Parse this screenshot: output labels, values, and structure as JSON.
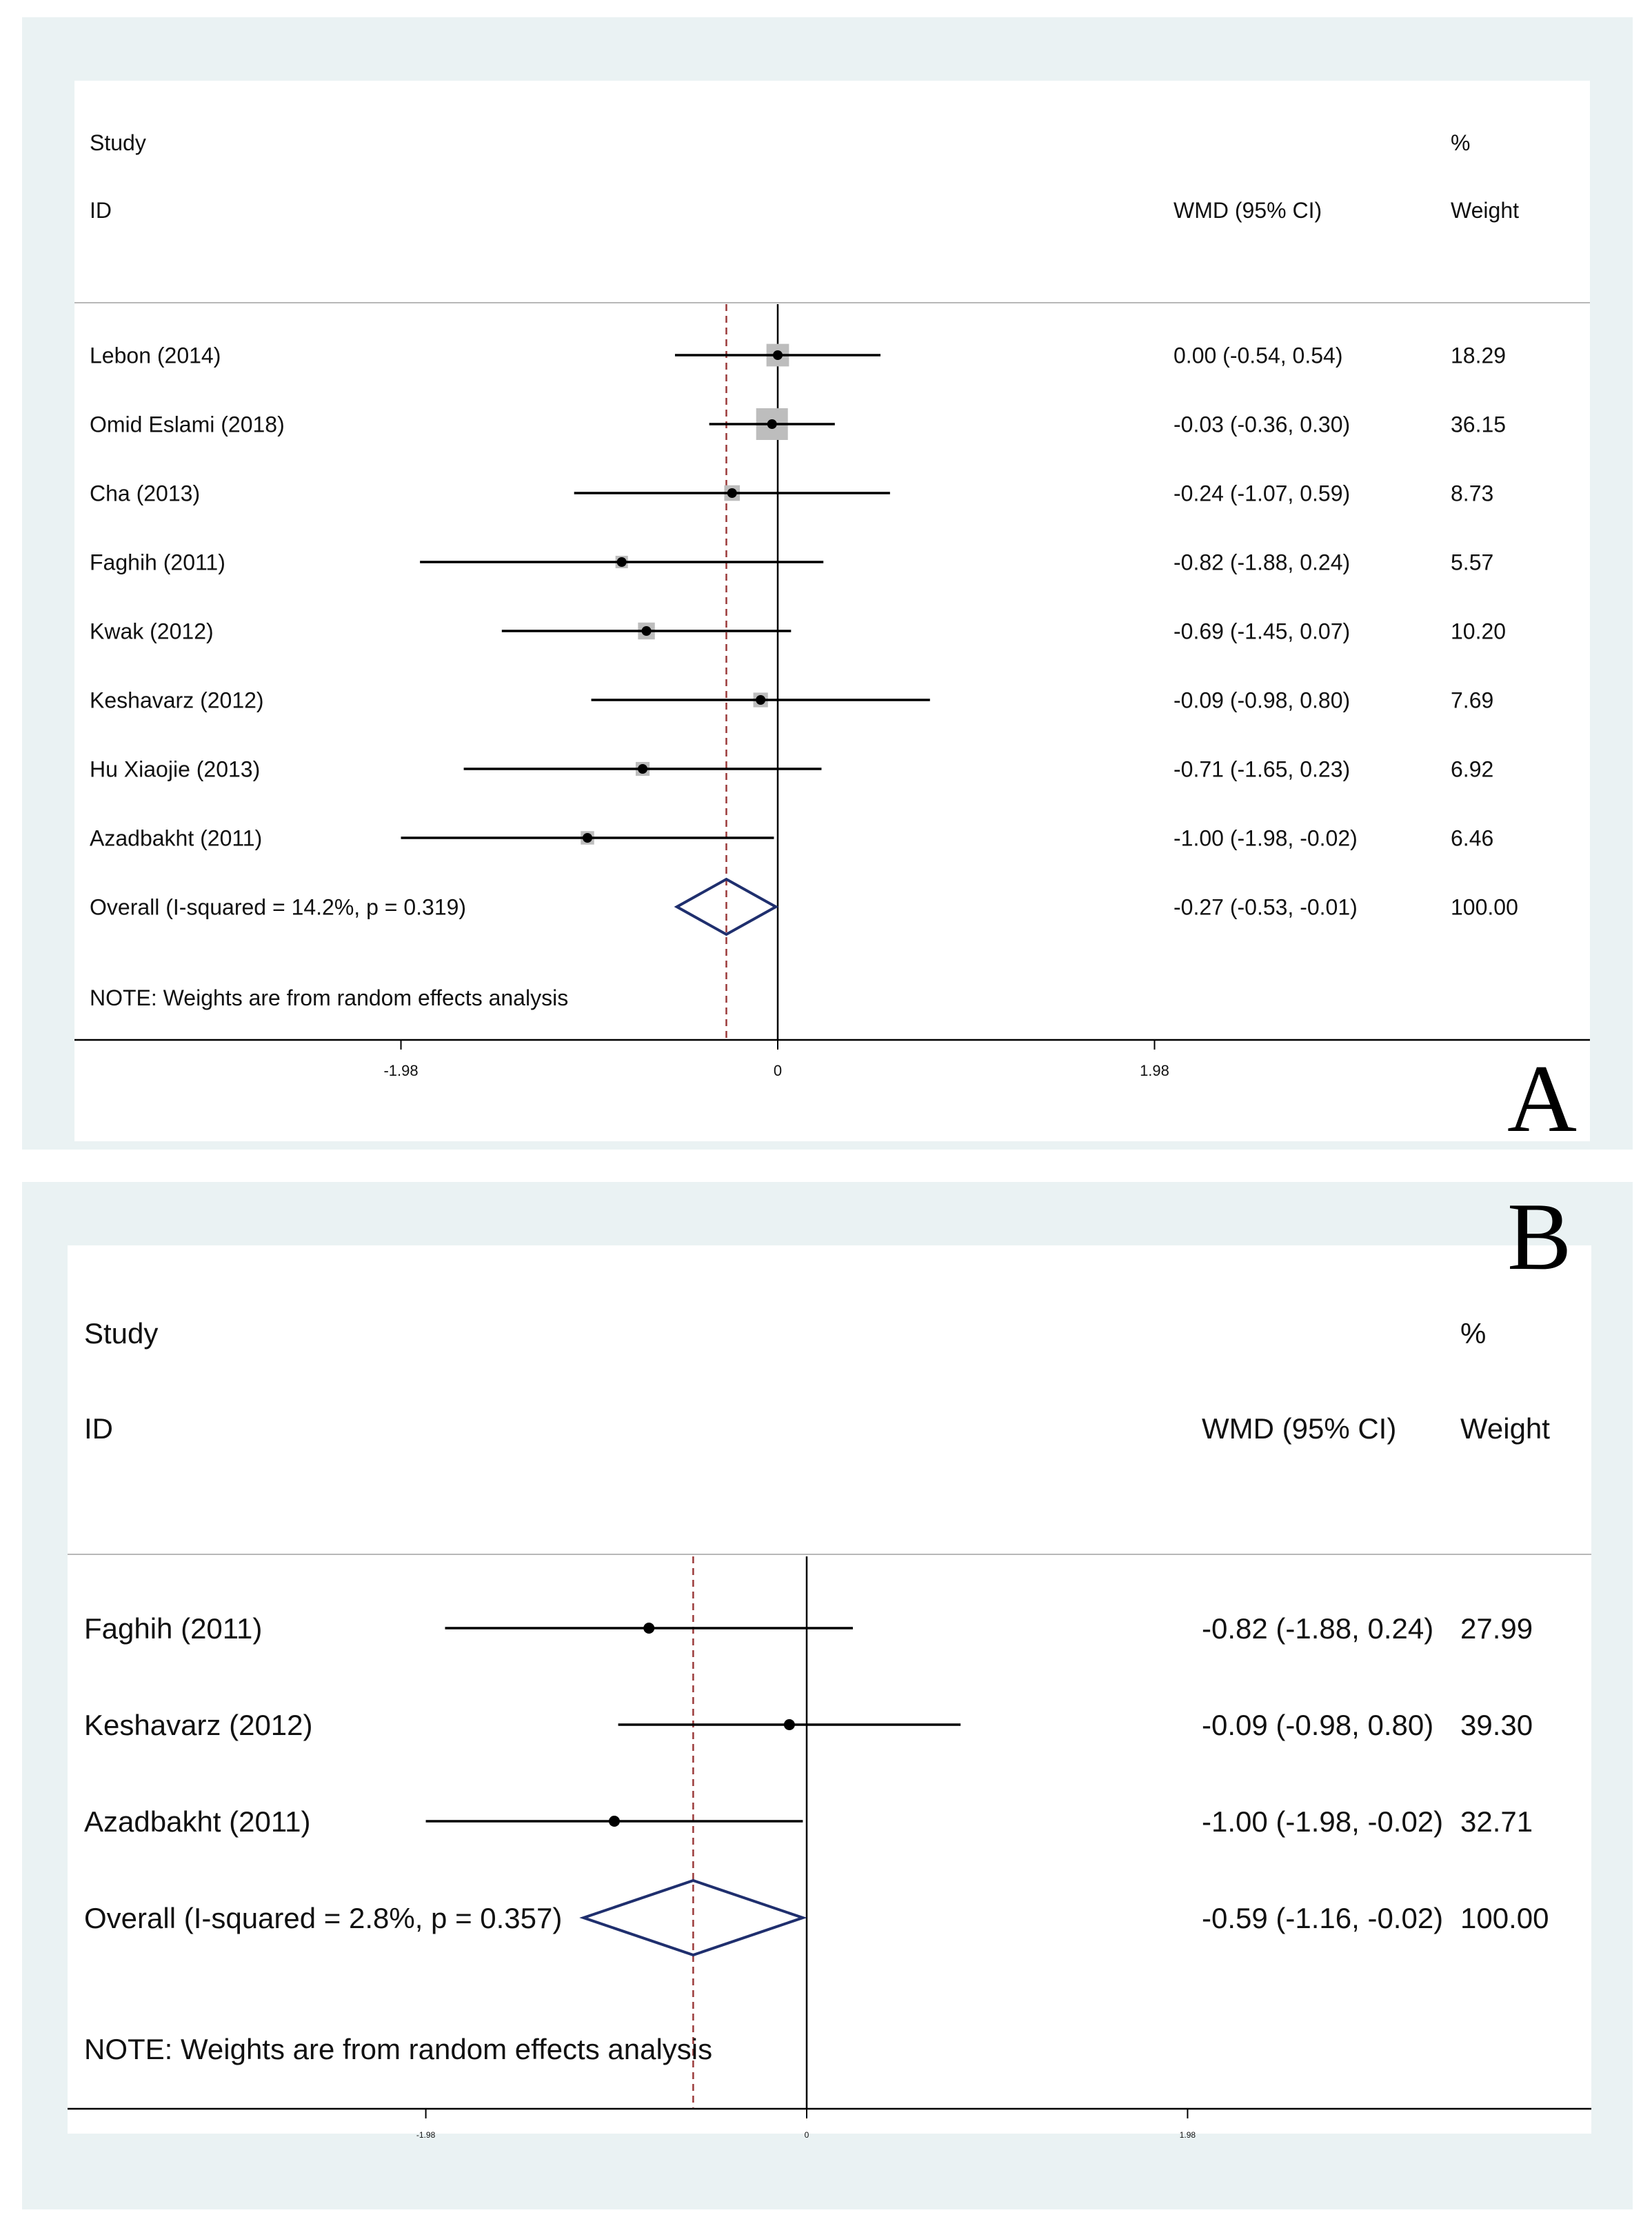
{
  "chart_data": [
    {
      "type": "forest",
      "panel_label": "A",
      "header": {
        "study": "Study",
        "id": "ID",
        "effect": "WMD (95% CI)",
        "percent": "%",
        "weight": "Weight"
      },
      "x_ticks": [
        {
          "value": -1.98,
          "label": "-1.98"
        },
        {
          "value": 0,
          "label": "0"
        },
        {
          "value": 1.98,
          "label": "1.98"
        }
      ],
      "studies": [
        {
          "name": "Lebon (2014)",
          "est": 0.0,
          "lo": -0.54,
          "hi": 0.54,
          "ci_text": "0.00 (-0.54, 0.54)",
          "weight": 18.29,
          "weight_text": "18.29"
        },
        {
          "name": "Omid Eslami (2018)",
          "est": -0.03,
          "lo": -0.36,
          "hi": 0.3,
          "ci_text": "-0.03 (-0.36, 0.30)",
          "weight": 36.15,
          "weight_text": "36.15"
        },
        {
          "name": "Cha (2013)",
          "est": -0.24,
          "lo": -1.07,
          "hi": 0.59,
          "ci_text": "-0.24 (-1.07, 0.59)",
          "weight": 8.73,
          "weight_text": "8.73"
        },
        {
          "name": "Faghih (2011)",
          "est": -0.82,
          "lo": -1.88,
          "hi": 0.24,
          "ci_text": "-0.82 (-1.88, 0.24)",
          "weight": 5.57,
          "weight_text": "5.57"
        },
        {
          "name": "Kwak (2012)",
          "est": -0.69,
          "lo": -1.45,
          "hi": 0.07,
          "ci_text": "-0.69 (-1.45, 0.07)",
          "weight": 10.2,
          "weight_text": "10.20"
        },
        {
          "name": "Keshavarz (2012)",
          "est": -0.09,
          "lo": -0.98,
          "hi": 0.8,
          "ci_text": "-0.09 (-0.98, 0.80)",
          "weight": 7.69,
          "weight_text": "7.69"
        },
        {
          "name": "Hu Xiaojie (2013)",
          "est": -0.71,
          "lo": -1.65,
          "hi": 0.23,
          "ci_text": "-0.71 (-1.65, 0.23)",
          "weight": 6.92,
          "weight_text": "6.92"
        },
        {
          "name": "Azadbakht (2011)",
          "est": -1.0,
          "lo": -1.98,
          "hi": -0.02,
          "ci_text": "-1.00 (-1.98, -0.02)",
          "weight": 6.46,
          "weight_text": "6.46"
        }
      ],
      "overall": {
        "label": "Overall  (I-squared = 14.2%, p = 0.319)",
        "est": -0.27,
        "lo": -0.53,
        "hi": -0.01,
        "ci_text": "-0.27 (-0.53, -0.01)",
        "weight_text": "100.00"
      },
      "note": "NOTE: Weights are from random effects analysis"
    },
    {
      "type": "forest",
      "panel_label": "B",
      "header": {
        "study": "Study",
        "id": "ID",
        "effect": "WMD (95% CI)",
        "percent": "%",
        "weight": "Weight"
      },
      "x_ticks": [
        {
          "value": -1.98,
          "label": "-1.98"
        },
        {
          "value": 0,
          "label": "0"
        },
        {
          "value": 1.98,
          "label": "1.98"
        }
      ],
      "studies": [
        {
          "name": "Faghih (2011)",
          "est": -0.82,
          "lo": -1.88,
          "hi": 0.24,
          "ci_text": "-0.82 (-1.88, 0.24)",
          "weight": 27.99,
          "weight_text": "27.99"
        },
        {
          "name": "Keshavarz (2012)",
          "est": -0.09,
          "lo": -0.98,
          "hi": 0.8,
          "ci_text": "-0.09 (-0.98, 0.80)",
          "weight": 39.3,
          "weight_text": "39.30"
        },
        {
          "name": "Azadbakht (2011)",
          "est": -1.0,
          "lo": -1.98,
          "hi": -0.02,
          "ci_text": "-1.00 (-1.98, -0.02)",
          "weight": 32.71,
          "weight_text": "32.71"
        }
      ],
      "overall": {
        "label": "Overall  (I-squared = 2.8%, p = 0.357)",
        "est": -0.59,
        "lo": -1.16,
        "hi": -0.02,
        "ci_text": "-0.59 (-1.16, -0.02)",
        "weight_text": "100.00"
      },
      "note": "NOTE: Weights are from random effects analysis"
    }
  ],
  "colors": {
    "panel_bg": "#eaf2f3",
    "diamond": "#1f2f6e",
    "ref_line": "#9b3a3a",
    "weight_box": "#bdbdbd"
  }
}
